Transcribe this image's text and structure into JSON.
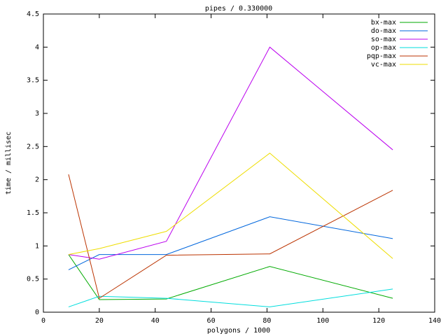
{
  "chart_data": {
    "type": "line",
    "title": "pipes / 0.330000",
    "x_label": "polygons / 1000",
    "y_label": "time / millisec",
    "x": [
      9,
      20,
      44,
      81,
      125
    ],
    "series": [
      {
        "name": "bx-max",
        "color": "#00aa00",
        "values": [
          0.87,
          0.19,
          0.2,
          0.69,
          0.21
        ]
      },
      {
        "name": "do-max",
        "color": "#0066dd",
        "values": [
          0.64,
          0.87,
          0.87,
          1.44,
          1.11
        ]
      },
      {
        "name": "so-max",
        "color": "#bb00ee",
        "values": [
          0.87,
          0.8,
          1.07,
          4.0,
          2.45
        ]
      },
      {
        "name": "op-max",
        "color": "#00dddd",
        "values": [
          0.08,
          0.24,
          0.21,
          0.08,
          0.35
        ]
      },
      {
        "name": "pqp-max",
        "color": "#bb3300",
        "values": [
          2.08,
          0.21,
          0.86,
          0.88,
          1.84
        ]
      },
      {
        "name": "vc-max",
        "color": "#eedd00",
        "values": [
          0.87,
          0.96,
          1.22,
          2.4,
          0.81
        ]
      }
    ],
    "xlim": [
      0,
      140
    ],
    "xticks": [
      0,
      20,
      40,
      60,
      80,
      100,
      120,
      140
    ],
    "ylim": [
      0,
      4.5
    ],
    "yticks": [
      0,
      0.5,
      1,
      1.5,
      2,
      2.5,
      3,
      3.5,
      4,
      4.5
    ],
    "legend": "top-right"
  }
}
